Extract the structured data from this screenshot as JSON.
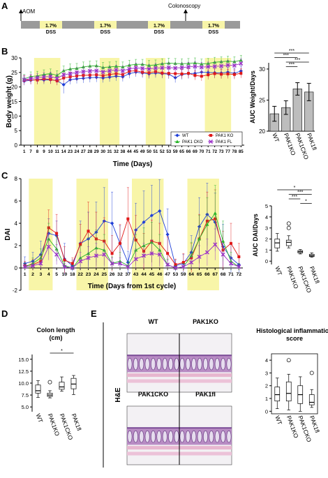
{
  "colors": {
    "wt": "#1f3fd8",
    "ko": "#e01818",
    "cko": "#2bb52b",
    "fl": "#9b30c8",
    "dss": "#f8f5a8",
    "bar": "#bdbdbd",
    "timeline": "#9a9a9a"
  },
  "panels": {
    "a": "A",
    "b": "B",
    "c": "C",
    "d": "D",
    "e": "E"
  },
  "timeline": {
    "aom": "AOM",
    "colonoscopy": "Colonoscopy",
    "dss_pct": "1.7%",
    "dss": "DSS"
  },
  "chart_data": [
    {
      "type": "line",
      "ylabel": "Body weight (g)",
      "xlabel": "Time (Days)",
      "ylim": [
        0,
        30
      ],
      "yticks": [
        0,
        5,
        10,
        15,
        20,
        25,
        30
      ],
      "x": [
        "1",
        "7",
        "8",
        "9",
        "10",
        "11",
        "14",
        "23",
        "24",
        "27",
        "28",
        "29",
        "30",
        "31",
        "32",
        "38",
        "44",
        "45",
        "49",
        "50",
        "51",
        "52",
        "53",
        "59",
        "65",
        "66",
        "69",
        "70",
        "71",
        "72",
        "73",
        "77",
        "78",
        "85"
      ],
      "dss_bands": [
        [
          2,
          5
        ],
        [
          12,
          14
        ],
        [
          19,
          21
        ],
        [
          28,
          31
        ]
      ],
      "legend": {
        "placement": "bottom-right"
      },
      "series": [
        {
          "name": "WT",
          "color_key": "wt",
          "values": [
            22,
            22.3,
            22.5,
            22.4,
            22.5,
            22.2,
            20.8,
            22.5,
            22.8,
            23,
            23.2,
            23.3,
            23.1,
            23.4,
            23.7,
            23.5,
            24.6,
            25.1,
            24.8,
            24.5,
            24.8,
            24.6,
            24.4,
            23.2,
            24.3,
            24.6,
            24.7,
            25.1,
            25,
            24.9,
            24.8,
            25.1,
            24.7,
            25.5
          ],
          "err": [
            1.4,
            1.4,
            1.4,
            1.4,
            1.4,
            1.4,
            3,
            1.6,
            1.6,
            1.6,
            1.6,
            1.6,
            1.6,
            1.6,
            1.6,
            1.6,
            1.6,
            1.6,
            1.6,
            1.6,
            1.6,
            1.6,
            1.6,
            1.7,
            1.7,
            1.7,
            1.7,
            1.7,
            1.7,
            1.7,
            1.7,
            1.7,
            1.7,
            1.7
          ]
        },
        {
          "name": "PAK1 KO",
          "color_key": "ko",
          "values": [
            22.3,
            22.5,
            22.4,
            22.8,
            22.6,
            22.1,
            23.1,
            23.5,
            23.8,
            24,
            24.1,
            24.2,
            23.9,
            24.3,
            24.6,
            24.3,
            25.4,
            25.6,
            25.1,
            24.9,
            25.3,
            24.8,
            24.7,
            24.6,
            24.5,
            24.7,
            24,
            23.7,
            24.2,
            24.6,
            24.4,
            24.5,
            24.3,
            24.7
          ],
          "err": [
            1.5,
            1.5,
            1.5,
            1.5,
            1.5,
            1.5,
            1.6,
            1.6,
            1.6,
            1.6,
            1.6,
            1.6,
            1.6,
            1.6,
            1.6,
            1.6,
            1.6,
            1.6,
            1.6,
            1.6,
            1.6,
            1.6,
            1.6,
            1.6,
            1.6,
            1.6,
            1.6,
            1.6,
            1.6,
            1.6,
            1.6,
            1.6,
            1.6,
            1.6
          ]
        },
        {
          "name": "PAK1 CKO",
          "color_key": "cko",
          "values": [
            22.8,
            23.6,
            23.8,
            24.3,
            24.6,
            24,
            25.6,
            26.2,
            26.4,
            26.9,
            27.2,
            27.3,
            26.7,
            26.9,
            27.1,
            26.9,
            27.5,
            27.8,
            27.8,
            27.4,
            27.6,
            28,
            28.2,
            28.1,
            28,
            28.1,
            28.3,
            27.9,
            28.1,
            28.5,
            28.7,
            28.9,
            28.7,
            29.2
          ],
          "err": [
            1.5,
            1.6,
            1.6,
            1.6,
            1.6,
            1.6,
            1.6,
            1.7,
            1.7,
            1.7,
            1.7,
            1.7,
            1.7,
            1.7,
            1.7,
            1.7,
            1.7,
            1.7,
            1.7,
            1.7,
            1.7,
            1.7,
            1.7,
            1.7,
            1.7,
            1.7,
            1.7,
            1.7,
            1.7,
            1.7,
            1.7,
            1.7,
            1.7,
            1.7
          ]
        },
        {
          "name": "PAK1 FL",
          "color_key": "fl",
          "values": [
            22.5,
            22.9,
            23.2,
            23.5,
            23.6,
            23,
            24.2,
            24.6,
            25,
            25.3,
            25.5,
            25.6,
            25.2,
            25.6,
            25.9,
            25.6,
            26.2,
            26.6,
            26.4,
            26.2,
            26.5,
            26.6,
            26.7,
            26.5,
            26.7,
            26.9,
            27.1,
            26.8,
            27,
            27.1,
            27.2,
            27.5,
            27.4,
            28.1
          ],
          "err": [
            1.5,
            1.5,
            1.5,
            1.5,
            1.5,
            1.5,
            1.6,
            1.6,
            1.6,
            1.6,
            1.6,
            1.6,
            1.6,
            1.6,
            1.6,
            1.6,
            1.6,
            1.6,
            1.6,
            1.6,
            1.6,
            1.6,
            1.6,
            1.6,
            1.6,
            1.6,
            1.6,
            1.6,
            1.6,
            1.6,
            1.6,
            1.6,
            1.6,
            1.6
          ]
        }
      ]
    },
    {
      "type": "bar",
      "ylabel": "AUC Weight/Days",
      "categories": [
        "WT",
        "PAK1KO",
        "PAK1CKO",
        "PAK1fl"
      ],
      "values": [
        22.8,
        23.8,
        26.8,
        26.3
      ],
      "err": [
        1.2,
        1.1,
        1.0,
        1.4
      ],
      "ylim": [
        20,
        31
      ],
      "yticks": [
        20,
        25,
        30
      ],
      "significance": [
        {
          "from": 0,
          "to": 3,
          "label": "***"
        },
        {
          "from": 0,
          "to": 2,
          "label": "***"
        },
        {
          "from": 1,
          "to": 3,
          "label": "***"
        },
        {
          "from": 1,
          "to": 2,
          "label": "***"
        }
      ]
    },
    {
      "type": "line",
      "ylabel": "DAI",
      "xlabel": "Time (Days from 1st cycle)",
      "ylim": [
        -2,
        8
      ],
      "yticks": [
        -2,
        0,
        2,
        4,
        6,
        8
      ],
      "x": [
        "1",
        "2",
        "3",
        "4",
        "5",
        "10",
        "18",
        "22",
        "23",
        "24",
        "25",
        "26",
        "32",
        "37",
        "43",
        "44",
        "45",
        "46",
        "47",
        "53",
        "59",
        "64",
        "65",
        "66",
        "67",
        "68",
        "71",
        "72"
      ],
      "dss_bands": [
        [
          1,
          3
        ],
        [
          7,
          10
        ],
        [
          14,
          17
        ],
        [
          21,
          24
        ]
      ],
      "series": [
        {
          "name": "WT",
          "color_key": "wt",
          "values": [
            0.4,
            0.6,
            1.2,
            3.1,
            2.9,
            0.8,
            0.2,
            2.2,
            2.6,
            3.2,
            4.2,
            4,
            2.2,
            0.5,
            3.4,
            4.1,
            4.7,
            5.1,
            3,
            0.2,
            0.4,
            1.4,
            3.7,
            4.8,
            4.1,
            1.9,
            0.9,
            0.3
          ],
          "err": [
            0.6,
            0.8,
            1.2,
            1.3,
            1.3,
            1.4,
            0.5,
            2,
            2.4,
            2.7,
            3,
            2.8,
            1.6,
            1,
            2.4,
            2.8,
            2.7,
            2.8,
            2.3,
            0.5,
            0.8,
            1.5,
            2.6,
            2.8,
            2.6,
            2,
            1.3,
            0.7
          ]
        },
        {
          "name": "PAK1 KO",
          "color_key": "ko",
          "values": [
            0.2,
            0.3,
            0.6,
            3.6,
            3.1,
            0.7,
            0.4,
            2.1,
            3.3,
            2.6,
            2.4,
            1.3,
            2.2,
            4.4,
            2.5,
            1.5,
            2.4,
            2.2,
            1.3,
            0.3,
            0.5,
            0.9,
            2.6,
            4.2,
            4.4,
            1.6,
            2.2,
            1
          ],
          "err": [
            0.4,
            0.5,
            0.6,
            1.6,
            1.7,
            1.2,
            0.5,
            1.8,
            2.6,
            2.4,
            2.1,
            1.6,
            1.7,
            2.8,
            2.2,
            1.6,
            1.9,
            1.8,
            1.5,
            0.5,
            0.8,
            1.3,
            2.2,
            2.6,
            2.6,
            1.7,
            1.8,
            1.2
          ]
        },
        {
          "name": "PAK1 CKO",
          "color_key": "cko",
          "values": [
            0.1,
            0.4,
            0.9,
            2.6,
            1.7,
            0.2,
            0,
            0.9,
            1.3,
            1.8,
            1.6,
            0.4,
            0.6,
            0.2,
            1.6,
            2,
            2.3,
            1.6,
            0.3,
            0,
            0.1,
            1.1,
            2.6,
            3.9,
            4.9,
            2.4,
            0.6,
            0.1
          ],
          "err": [
            0.3,
            0.5,
            0.8,
            1.4,
            1.1,
            0.4,
            0.2,
            1.1,
            1.4,
            1.6,
            1.4,
            0.6,
            0.8,
            0.4,
            1.4,
            1.6,
            1.8,
            1.4,
            0.5,
            0.2,
            0.3,
            1.2,
            2.1,
            2.4,
            2.5,
            1.8,
            0.8,
            0.3
          ]
        },
        {
          "name": "PAK1 FL",
          "color_key": "fl",
          "values": [
            0.1,
            0.2,
            0.4,
            1.9,
            1.2,
            0.1,
            0,
            0.6,
            0.9,
            1.1,
            1.2,
            0.4,
            0.4,
            0.1,
            0.8,
            1.1,
            1.3,
            1.2,
            0.3,
            0,
            0.1,
            0.5,
            1,
            1.4,
            2.1,
            1.2,
            0.4,
            0.1
          ],
          "err": [
            0.2,
            0.3,
            0.5,
            1.2,
            0.9,
            0.3,
            0.1,
            0.8,
            1,
            1.1,
            1.1,
            0.5,
            0.5,
            0.3,
            0.9,
            1.1,
            1.2,
            1.1,
            0.4,
            0.1,
            0.2,
            0.6,
            1,
            1.2,
            1.4,
            1,
            0.5,
            0.2
          ]
        }
      ]
    },
    {
      "type": "box",
      "ylabel": "AUC DAI/Days",
      "categories": [
        "WT",
        "PAK1KO",
        "PAK1CKO",
        "PAK1fl"
      ],
      "boxes": [
        {
          "min": 0.9,
          "q1": 1.2,
          "median": 1.65,
          "q3": 2.0,
          "max": 2.5,
          "outliers": []
        },
        {
          "min": 1.2,
          "q1": 1.4,
          "median": 1.7,
          "q3": 1.9,
          "max": 2.3,
          "outliers": [
            3.0,
            3.4
          ]
        },
        {
          "min": 0.65,
          "q1": 0.75,
          "median": 0.85,
          "q3": 0.95,
          "max": 1.05,
          "outliers": []
        },
        {
          "min": 0.35,
          "q1": 0.42,
          "median": 0.5,
          "q3": 0.62,
          "max": 0.75,
          "outliers": []
        }
      ],
      "ylim": [
        -0.3,
        5
      ],
      "yticks": [
        0,
        1,
        2,
        3,
        4,
        5
      ],
      "significance": [
        {
          "from": 0,
          "to": 3,
          "label": "*"
        },
        {
          "from": 1,
          "to": 3,
          "label": "***"
        },
        {
          "from": 1,
          "to": 2,
          "label": "***"
        },
        {
          "from": 2,
          "to": 3,
          "label": "*"
        }
      ]
    },
    {
      "type": "box",
      "title": "Colon length (cm)",
      "categories": [
        "WT",
        "PAK1KO",
        "PAK1CKO",
        "PAK1fl"
      ],
      "boxes": [
        {
          "min": 7.0,
          "q1": 7.9,
          "median": 8.4,
          "q3": 9.6,
          "max": 10.5,
          "outliers": []
        },
        {
          "min": 6.9,
          "q1": 7.2,
          "median": 7.5,
          "q3": 7.9,
          "max": 8.4,
          "outliers": [
            10.2
          ]
        },
        {
          "min": 8.3,
          "q1": 8.7,
          "median": 9.2,
          "q3": 10.2,
          "max": 11.3,
          "outliers": []
        },
        {
          "min": 7.6,
          "q1": 8.8,
          "median": 9.8,
          "q3": 11.0,
          "max": 11.6,
          "outliers": []
        }
      ],
      "ylim": [
        4,
        16
      ],
      "yticks": [
        5.0,
        7.5,
        10.0,
        12.5,
        15.0
      ],
      "significance": [
        {
          "from": 1,
          "to": 3,
          "label": "*"
        }
      ]
    },
    {
      "type": "box",
      "title": "Histological inflammation score",
      "categories": [
        "WT",
        "PAK1KO",
        "PAK1CKO",
        "PAK1fl"
      ],
      "boxes": [
        {
          "min": 0.2,
          "q1": 0.8,
          "median": 1.3,
          "q3": 1.9,
          "max": 2.6,
          "outliers": []
        },
        {
          "min": 0.1,
          "q1": 0.8,
          "median": 1.4,
          "q3": 2.3,
          "max": 2.9,
          "outliers": [
            4.0
          ]
        },
        {
          "min": 0,
          "q1": 0.6,
          "median": 1.3,
          "q3": 2.0,
          "max": 2.7,
          "outliers": []
        },
        {
          "min": 0.3,
          "q1": 0.5,
          "median": 0.7,
          "q3": 1.3,
          "max": 1.7,
          "outliers": [
            3.0
          ]
        }
      ],
      "ylim": [
        -0.2,
        4.5
      ],
      "yticks": [
        0,
        1,
        2,
        3,
        4
      ]
    }
  ],
  "histology": {
    "row_label": "H&E",
    "images": [
      "WT",
      "PAK1KO",
      "PAK1CKO",
      "PAK1fl"
    ]
  }
}
